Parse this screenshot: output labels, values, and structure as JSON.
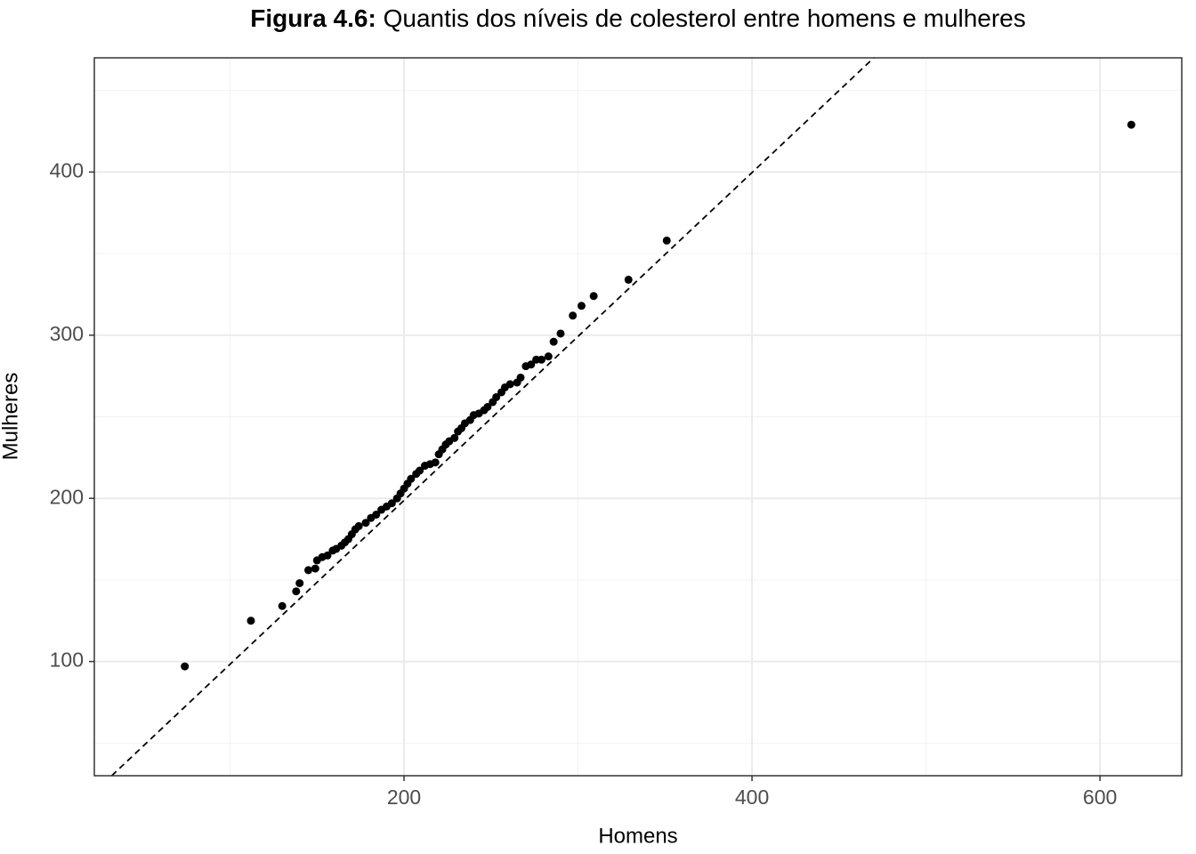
{
  "chart_data": {
    "type": "scatter",
    "title_label": "Figura 4.6:",
    "title": "Quantis dos níveis de colesterol entre homens e mulheres",
    "x_label": "Homens",
    "y_label": "Mulheres",
    "xlim": [
      22,
      647
    ],
    "ylim": [
      30,
      470
    ],
    "xticks": [
      200,
      400,
      600
    ],
    "yticks": [
      100,
      200,
      300,
      400
    ],
    "xminor": [
      100,
      300,
      500
    ],
    "yminor": [
      50,
      150,
      250,
      350,
      450
    ],
    "grid": true,
    "color": "#000000",
    "reference_line": {
      "x": [
        32,
        470
      ],
      "y": [
        30,
        470
      ],
      "color": "#000000",
      "dashed": true
    },
    "x": [
      74,
      112,
      130,
      138,
      140,
      145,
      149,
      150,
      153,
      156,
      159,
      161,
      164,
      166,
      168,
      170,
      172,
      174,
      178,
      181,
      184,
      187,
      190,
      193,
      196,
      198,
      200,
      202,
      204,
      207,
      209,
      212,
      215,
      218,
      220,
      222,
      224,
      226,
      229,
      231,
      233,
      235,
      238,
      240,
      243,
      246,
      248,
      251,
      253,
      256,
      258,
      261,
      265,
      267,
      270,
      273,
      276,
      279,
      283,
      286,
      290,
      297,
      302,
      309,
      329,
      351,
      618
    ],
    "values": [
      97,
      125,
      134,
      143,
      148,
      156,
      157,
      162,
      164,
      165,
      168,
      169,
      171,
      173,
      175,
      178,
      181,
      183,
      185,
      188,
      190,
      193,
      195,
      197,
      200,
      203,
      206,
      209,
      212,
      215,
      217,
      220,
      221,
      222,
      227,
      230,
      233,
      235,
      237,
      241,
      243,
      246,
      248,
      251,
      252,
      254,
      256,
      259,
      262,
      265,
      268,
      270,
      271,
      274,
      281,
      282,
      285,
      285,
      287,
      296,
      301,
      312,
      318,
      324,
      334,
      358,
      429
    ]
  }
}
